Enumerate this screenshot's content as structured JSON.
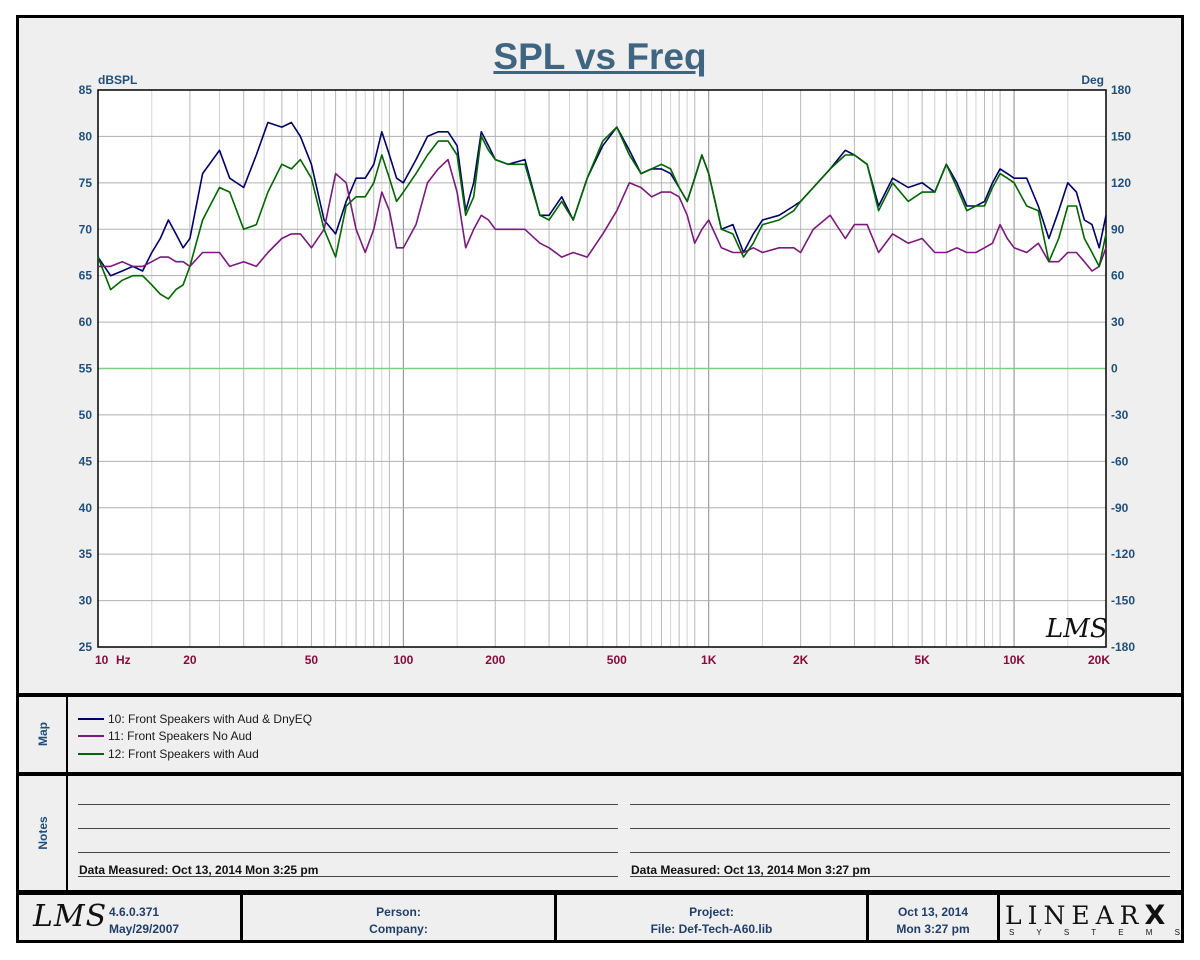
{
  "chart_data": {
    "type": "line",
    "title": "SPL vs Freq",
    "ylabel_left": "dBSPL",
    "ylabel_right": "Deg",
    "x_scale": "log",
    "xlim": [
      10,
      20000
    ],
    "ylim": [
      25,
      85
    ],
    "ylim_right": [
      -180,
      180
    ],
    "x_tick_labels": [
      {
        "value": 10,
        "label": "10"
      },
      {
        "value": 20,
        "label": "20"
      },
      {
        "value": 50,
        "label": "50"
      },
      {
        "value": 100,
        "label": "100"
      },
      {
        "value": 200,
        "label": "200"
      },
      {
        "value": 500,
        "label": "500"
      },
      {
        "value": 1000,
        "label": "1K"
      },
      {
        "value": 2000,
        "label": "2K"
      },
      {
        "value": 5000,
        "label": "5K"
      },
      {
        "value": 10000,
        "label": "10K"
      },
      {
        "value": 20000,
        "label": "20K"
      }
    ],
    "x_unit_label": "Hz",
    "y_ticks": [
      85,
      80,
      75,
      70,
      65,
      60,
      55,
      50,
      45,
      40,
      35,
      30,
      25
    ],
    "y_ticks_right": [
      "180",
      "150",
      "120",
      "90",
      "60",
      "30",
      "0",
      "-30",
      "-60",
      "-90",
      "-120",
      "-150",
      "-180"
    ],
    "grid": true,
    "reference_line": {
      "y": 55,
      "color": "#7fcf7f"
    },
    "watermark": "LMS",
    "series": [
      {
        "name": "10: Front Speakers with Aud & DnyEQ",
        "color": "#000066",
        "x": [
          10,
          11,
          12,
          13,
          14,
          15,
          16,
          17,
          18,
          19,
          20,
          22,
          25,
          27,
          30,
          33,
          36,
          40,
          43,
          46,
          50,
          55,
          60,
          65,
          70,
          75,
          80,
          85,
          90,
          95,
          100,
          110,
          120,
          130,
          140,
          150,
          160,
          170,
          180,
          190,
          200,
          220,
          250,
          280,
          300,
          330,
          360,
          400,
          450,
          500,
          550,
          600,
          650,
          700,
          750,
          800,
          850,
          900,
          950,
          1000,
          1100,
          1200,
          1300,
          1400,
          1500,
          1700,
          1900,
          2000,
          2200,
          2500,
          2800,
          3000,
          3300,
          3600,
          4000,
          4500,
          5000,
          5500,
          6000,
          6500,
          7000,
          7500,
          8000,
          8500,
          9000,
          9500,
          10000,
          11000,
          12000,
          13000,
          14000,
          15000,
          16000,
          17000,
          18000,
          19000,
          20000
        ],
        "y": [
          67,
          65,
          65.5,
          66,
          65.5,
          67.5,
          69,
          71,
          69.5,
          68,
          69,
          76,
          78.5,
          75.5,
          74.5,
          78,
          81.5,
          81,
          81.5,
          80,
          77,
          71,
          69.5,
          73,
          75.5,
          75.5,
          77,
          80.5,
          78,
          75.5,
          75,
          77.5,
          80,
          80.5,
          80.5,
          79,
          72,
          75,
          80.5,
          79,
          77.5,
          77,
          77.5,
          71.5,
          71.5,
          73.5,
          71,
          75.5,
          79,
          81,
          78.5,
          76,
          76.5,
          76.5,
          76,
          74.5,
          73,
          75.5,
          78,
          76,
          70,
          70.5,
          67.5,
          69.5,
          71,
          71.5,
          72.5,
          73,
          74.5,
          76.5,
          78.5,
          78,
          77,
          72.5,
          75.5,
          74.5,
          75,
          74,
          77,
          75,
          72.5,
          72.5,
          73,
          75,
          76.5,
          76,
          75.5,
          75.5,
          72.5,
          69,
          72,
          75,
          74,
          71,
          70.5,
          68,
          71.5
        ]
      },
      {
        "name": "11: Front Speakers No Aud",
        "color": "#7a1a7a",
        "x": [
          10,
          11,
          12,
          13,
          14,
          15,
          16,
          17,
          18,
          19,
          20,
          22,
          25,
          27,
          30,
          33,
          36,
          40,
          43,
          46,
          50,
          55,
          60,
          65,
          70,
          75,
          80,
          85,
          90,
          95,
          100,
          110,
          120,
          130,
          140,
          150,
          160,
          170,
          180,
          190,
          200,
          220,
          250,
          280,
          300,
          330,
          360,
          400,
          450,
          500,
          550,
          600,
          650,
          700,
          750,
          800,
          850,
          900,
          950,
          1000,
          1100,
          1200,
          1300,
          1400,
          1500,
          1700,
          1900,
          2000,
          2200,
          2500,
          2800,
          3000,
          3300,
          3600,
          4000,
          4500,
          5000,
          5500,
          6000,
          6500,
          7000,
          7500,
          8000,
          8500,
          9000,
          9500,
          10000,
          11000,
          12000,
          13000,
          14000,
          15000,
          16000,
          17000,
          18000,
          19000,
          20000
        ],
        "y": [
          66,
          66,
          66.5,
          66,
          66,
          66.5,
          67,
          67,
          66.5,
          66.5,
          66,
          67.5,
          67.5,
          66,
          66.5,
          66,
          67.5,
          69,
          69.5,
          69.5,
          68,
          70,
          76,
          75,
          70,
          67.5,
          70,
          74,
          72,
          68,
          68,
          70.5,
          75,
          76.5,
          77.5,
          74,
          68,
          70,
          71.5,
          71,
          70,
          70,
          70,
          68.5,
          68,
          67,
          67.5,
          67,
          69.5,
          72,
          75,
          74.5,
          73.5,
          74,
          74,
          73.5,
          71.5,
          68.5,
          70,
          71,
          68,
          67.5,
          67.5,
          68,
          67.5,
          68,
          68,
          67.5,
          70,
          71.5,
          69,
          70.5,
          70.5,
          67.5,
          69.5,
          68.5,
          69,
          67.5,
          67.5,
          68,
          67.5,
          67.5,
          68,
          68.5,
          70.5,
          69,
          68,
          67.5,
          68.5,
          66.5,
          66.5,
          67.5,
          67.5,
          66.5,
          65.5,
          66,
          68
        ]
      },
      {
        "name": "12: Front Speakers with Aud",
        "color": "#006600",
        "x": [
          10,
          11,
          12,
          13,
          14,
          15,
          16,
          17,
          18,
          19,
          20,
          22,
          25,
          27,
          30,
          33,
          36,
          40,
          43,
          46,
          50,
          55,
          60,
          65,
          70,
          75,
          80,
          85,
          90,
          95,
          100,
          110,
          120,
          130,
          140,
          150,
          160,
          170,
          180,
          190,
          200,
          220,
          250,
          280,
          300,
          330,
          360,
          400,
          450,
          500,
          550,
          600,
          650,
          700,
          750,
          800,
          850,
          900,
          950,
          1000,
          1100,
          1200,
          1300,
          1400,
          1500,
          1700,
          1900,
          2000,
          2200,
          2500,
          2800,
          3000,
          3300,
          3600,
          4000,
          4500,
          5000,
          5500,
          6000,
          6500,
          7000,
          7500,
          8000,
          8500,
          9000,
          9500,
          10000,
          11000,
          12000,
          13000,
          14000,
          15000,
          16000,
          17000,
          18000,
          19000,
          20000
        ],
        "y": [
          67,
          63.5,
          64.5,
          65,
          65,
          64,
          63,
          62.5,
          63.5,
          64,
          66,
          71,
          74.5,
          74,
          70,
          70.5,
          74,
          77,
          76.5,
          77.5,
          75.5,
          70,
          67,
          72.5,
          73.5,
          73.5,
          75,
          78,
          75.5,
          73,
          74,
          76,
          78,
          79.5,
          79.5,
          78,
          71.5,
          73.5,
          80,
          78.5,
          77.5,
          77,
          77,
          71.5,
          71,
          73,
          71,
          75.5,
          79.5,
          81,
          78,
          76,
          76.5,
          77,
          76.5,
          74.5,
          73,
          75.5,
          78,
          76,
          70,
          69.5,
          67,
          68.5,
          70.5,
          71,
          72,
          73,
          74.5,
          76.5,
          78,
          78,
          77,
          72,
          75,
          73,
          74,
          74,
          77,
          74.5,
          72,
          72.5,
          72.5,
          74.5,
          76,
          75.5,
          75,
          72.5,
          72,
          66.5,
          69,
          72.5,
          72.5,
          69,
          67.5,
          66,
          69.5
        ]
      }
    ]
  },
  "panels": {
    "map_label": "Map",
    "notes_label": "Notes",
    "notes_left": "Data Measured: Oct 13, 2014  Mon  3:25 pm",
    "notes_right": "Data Measured: Oct 13, 2014  Mon  3:27 pm"
  },
  "footer": {
    "logo": "LMS",
    "version": "4.6.0.371",
    "build_date": "May/29/2007",
    "person_label": "Person:",
    "company_label": "Company:",
    "project_label": "Project:",
    "file_label": "File: Def-Tech-A60.lib",
    "date": "Oct 13, 2014",
    "time": "Mon   3:27 pm",
    "brand": "LINEAR",
    "brand_mark": "X",
    "brand_sub": "S Y S T E M S"
  }
}
